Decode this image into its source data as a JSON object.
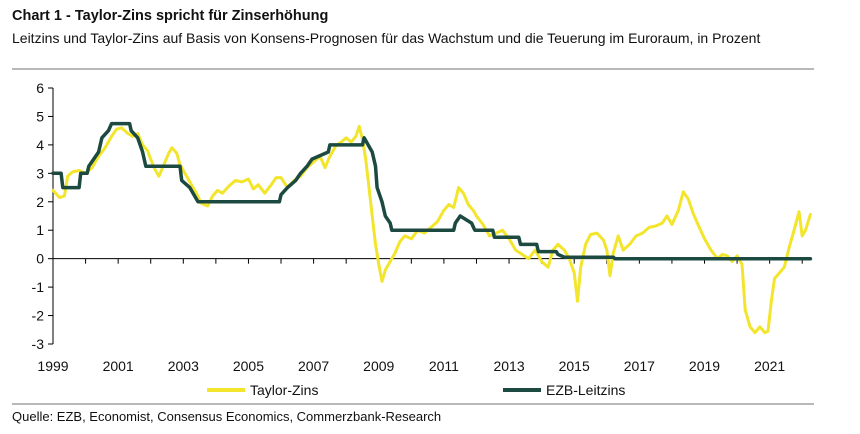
{
  "header": {
    "title": "Chart 1 - Taylor-Zins spricht für Zinserhöhung",
    "subtitle": "Leitzins und Taylor-Zins auf Basis von Konsens-Prognosen für das Wachstum und die Teuerung im Euroraum, in Prozent"
  },
  "footer": {
    "source": "Quelle: EZB, Economist, Consensus Economics, Commerzbank-Research"
  },
  "chart_data": {
    "type": "line",
    "title": "Chart 1 - Taylor-Zins spricht für Zinserhöhung",
    "xlabel": "",
    "ylabel": "",
    "xlim": [
      1999,
      2022.3
    ],
    "ylim": [
      -3,
      6
    ],
    "yticks": [
      6,
      5,
      4,
      3,
      2,
      1,
      0,
      -1,
      -2,
      -3
    ],
    "xticks": [
      "1999",
      "2001",
      "2003",
      "2005",
      "2007",
      "2009",
      "2011",
      "2013",
      "2015",
      "2017",
      "2019",
      "2021"
    ],
    "legend_position": "bottom",
    "series": [
      {
        "name": "Taylor-Zins",
        "color": "#F2E52B",
        "points": [
          [
            1999.0,
            2.4
          ],
          [
            1999.2,
            2.15
          ],
          [
            1999.35,
            2.2
          ],
          [
            1999.45,
            2.9
          ],
          [
            1999.6,
            3.05
          ],
          [
            1999.8,
            3.1
          ],
          [
            2000.0,
            3.0
          ],
          [
            2000.2,
            3.2
          ],
          [
            2000.4,
            3.6
          ],
          [
            2000.6,
            3.9
          ],
          [
            2000.8,
            4.3
          ],
          [
            2000.95,
            4.55
          ],
          [
            2001.1,
            4.6
          ],
          [
            2001.3,
            4.4
          ],
          [
            2001.45,
            4.3
          ],
          [
            2001.6,
            4.4
          ],
          [
            2001.75,
            4.0
          ],
          [
            2001.9,
            3.8
          ],
          [
            2002.0,
            3.5
          ],
          [
            2002.1,
            3.2
          ],
          [
            2002.25,
            2.9
          ],
          [
            2002.4,
            3.3
          ],
          [
            2002.55,
            3.7
          ],
          [
            2002.65,
            3.9
          ],
          [
            2002.8,
            3.7
          ],
          [
            2002.9,
            3.3
          ],
          [
            2003.05,
            3.0
          ],
          [
            2003.2,
            2.7
          ],
          [
            2003.4,
            2.3
          ],
          [
            2003.55,
            1.95
          ],
          [
            2003.75,
            1.85
          ],
          [
            2003.9,
            2.2
          ],
          [
            2004.05,
            2.4
          ],
          [
            2004.2,
            2.3
          ],
          [
            2004.4,
            2.55
          ],
          [
            2004.6,
            2.75
          ],
          [
            2004.8,
            2.7
          ],
          [
            2005.0,
            2.8
          ],
          [
            2005.15,
            2.45
          ],
          [
            2005.3,
            2.6
          ],
          [
            2005.5,
            2.3
          ],
          [
            2005.7,
            2.6
          ],
          [
            2005.85,
            2.85
          ],
          [
            2006.0,
            2.85
          ],
          [
            2006.2,
            2.5
          ],
          [
            2006.4,
            2.75
          ],
          [
            2006.6,
            2.9
          ],
          [
            2006.8,
            3.2
          ],
          [
            2007.0,
            3.4
          ],
          [
            2007.2,
            3.6
          ],
          [
            2007.35,
            3.2
          ],
          [
            2007.5,
            3.6
          ],
          [
            2007.7,
            4.0
          ],
          [
            2007.85,
            4.1
          ],
          [
            2008.0,
            4.25
          ],
          [
            2008.15,
            4.1
          ],
          [
            2008.3,
            4.3
          ],
          [
            2008.4,
            4.65
          ],
          [
            2008.5,
            4.2
          ],
          [
            2008.6,
            3.5
          ],
          [
            2008.7,
            2.5
          ],
          [
            2008.8,
            1.5
          ],
          [
            2008.9,
            0.5
          ],
          [
            2009.0,
            -0.2
          ],
          [
            2009.1,
            -0.8
          ],
          [
            2009.2,
            -0.4
          ],
          [
            2009.35,
            -0.1
          ],
          [
            2009.5,
            0.2
          ],
          [
            2009.65,
            0.6
          ],
          [
            2009.8,
            0.8
          ],
          [
            2010.0,
            0.7
          ],
          [
            2010.2,
            1.0
          ],
          [
            2010.4,
            0.9
          ],
          [
            2010.6,
            1.1
          ],
          [
            2010.8,
            1.3
          ],
          [
            2011.0,
            1.7
          ],
          [
            2011.15,
            1.9
          ],
          [
            2011.3,
            1.8
          ],
          [
            2011.45,
            2.5
          ],
          [
            2011.6,
            2.3
          ],
          [
            2011.75,
            1.9
          ],
          [
            2011.9,
            1.7
          ],
          [
            2012.0,
            1.5
          ],
          [
            2012.2,
            1.2
          ],
          [
            2012.4,
            0.8
          ],
          [
            2012.6,
            0.9
          ],
          [
            2012.8,
            1.0
          ],
          [
            2013.0,
            0.7
          ],
          [
            2013.2,
            0.3
          ],
          [
            2013.4,
            0.15
          ],
          [
            2013.6,
            0.0
          ],
          [
            2013.8,
            0.3
          ],
          [
            2014.0,
            -0.1
          ],
          [
            2014.2,
            -0.3
          ],
          [
            2014.35,
            0.3
          ],
          [
            2014.5,
            0.5
          ],
          [
            2014.7,
            0.3
          ],
          [
            2014.85,
            0.0
          ],
          [
            2015.0,
            -0.5
          ],
          [
            2015.1,
            -1.5
          ],
          [
            2015.2,
            -0.3
          ],
          [
            2015.35,
            0.5
          ],
          [
            2015.5,
            0.85
          ],
          [
            2015.7,
            0.9
          ],
          [
            2015.9,
            0.65
          ],
          [
            2016.0,
            0.3
          ],
          [
            2016.1,
            -0.6
          ],
          [
            2016.2,
            0.2
          ],
          [
            2016.35,
            0.8
          ],
          [
            2016.5,
            0.3
          ],
          [
            2016.7,
            0.5
          ],
          [
            2016.9,
            0.8
          ],
          [
            2017.1,
            0.9
          ],
          [
            2017.3,
            1.1
          ],
          [
            2017.5,
            1.15
          ],
          [
            2017.7,
            1.25
          ],
          [
            2017.85,
            1.5
          ],
          [
            2018.0,
            1.2
          ],
          [
            2018.2,
            1.7
          ],
          [
            2018.35,
            2.35
          ],
          [
            2018.5,
            2.1
          ],
          [
            2018.65,
            1.6
          ],
          [
            2018.8,
            1.2
          ],
          [
            2019.0,
            0.7
          ],
          [
            2019.2,
            0.3
          ],
          [
            2019.4,
            0.0
          ],
          [
            2019.55,
            0.15
          ],
          [
            2019.7,
            0.1
          ],
          [
            2019.85,
            -0.1
          ],
          [
            2020.0,
            0.1
          ],
          [
            2020.15,
            -0.2
          ],
          [
            2020.25,
            -1.8
          ],
          [
            2020.4,
            -2.4
          ],
          [
            2020.55,
            -2.6
          ],
          [
            2020.7,
            -2.4
          ],
          [
            2020.85,
            -2.6
          ],
          [
            2020.95,
            -2.55
          ],
          [
            2021.05,
            -1.5
          ],
          [
            2021.15,
            -0.7
          ],
          [
            2021.3,
            -0.5
          ],
          [
            2021.45,
            -0.3
          ],
          [
            2021.6,
            0.4
          ],
          [
            2021.75,
            1.0
          ],
          [
            2021.9,
            1.65
          ],
          [
            2022.0,
            0.8
          ],
          [
            2022.1,
            1.0
          ],
          [
            2022.25,
            1.55
          ]
        ]
      },
      {
        "name": "EZB-Leitzins",
        "color": "#1C4A40",
        "points": [
          [
            1999.0,
            3.0
          ],
          [
            1999.25,
            3.0
          ],
          [
            1999.3,
            2.5
          ],
          [
            1999.8,
            2.5
          ],
          [
            1999.85,
            3.0
          ],
          [
            2000.05,
            3.0
          ],
          [
            2000.1,
            3.25
          ],
          [
            2000.25,
            3.5
          ],
          [
            2000.4,
            3.75
          ],
          [
            2000.5,
            4.25
          ],
          [
            2000.7,
            4.5
          ],
          [
            2000.8,
            4.75
          ],
          [
            2001.35,
            4.75
          ],
          [
            2001.4,
            4.5
          ],
          [
            2001.6,
            4.25
          ],
          [
            2001.75,
            3.75
          ],
          [
            2001.85,
            3.25
          ],
          [
            2002.9,
            3.25
          ],
          [
            2002.95,
            2.75
          ],
          [
            2003.2,
            2.5
          ],
          [
            2003.45,
            2.0
          ],
          [
            2005.95,
            2.0
          ],
          [
            2006.0,
            2.25
          ],
          [
            2006.2,
            2.5
          ],
          [
            2006.45,
            2.75
          ],
          [
            2006.6,
            3.0
          ],
          [
            2006.8,
            3.25
          ],
          [
            2006.95,
            3.5
          ],
          [
            2007.45,
            3.75
          ],
          [
            2007.5,
            4.0
          ],
          [
            2008.5,
            4.0
          ],
          [
            2008.55,
            4.25
          ],
          [
            2008.8,
            3.75
          ],
          [
            2008.9,
            3.25
          ],
          [
            2008.95,
            2.5
          ],
          [
            2009.1,
            2.0
          ],
          [
            2009.2,
            1.5
          ],
          [
            2009.35,
            1.25
          ],
          [
            2009.4,
            1.0
          ],
          [
            2011.3,
            1.0
          ],
          [
            2011.35,
            1.25
          ],
          [
            2011.5,
            1.5
          ],
          [
            2011.85,
            1.25
          ],
          [
            2011.95,
            1.0
          ],
          [
            2012.5,
            1.0
          ],
          [
            2012.55,
            0.75
          ],
          [
            2013.3,
            0.75
          ],
          [
            2013.35,
            0.5
          ],
          [
            2013.85,
            0.5
          ],
          [
            2013.9,
            0.25
          ],
          [
            2014.45,
            0.25
          ],
          [
            2014.5,
            0.15
          ],
          [
            2014.7,
            0.05
          ],
          [
            2016.2,
            0.05
          ],
          [
            2016.25,
            0.0
          ],
          [
            2022.25,
            0.0
          ]
        ]
      }
    ]
  }
}
